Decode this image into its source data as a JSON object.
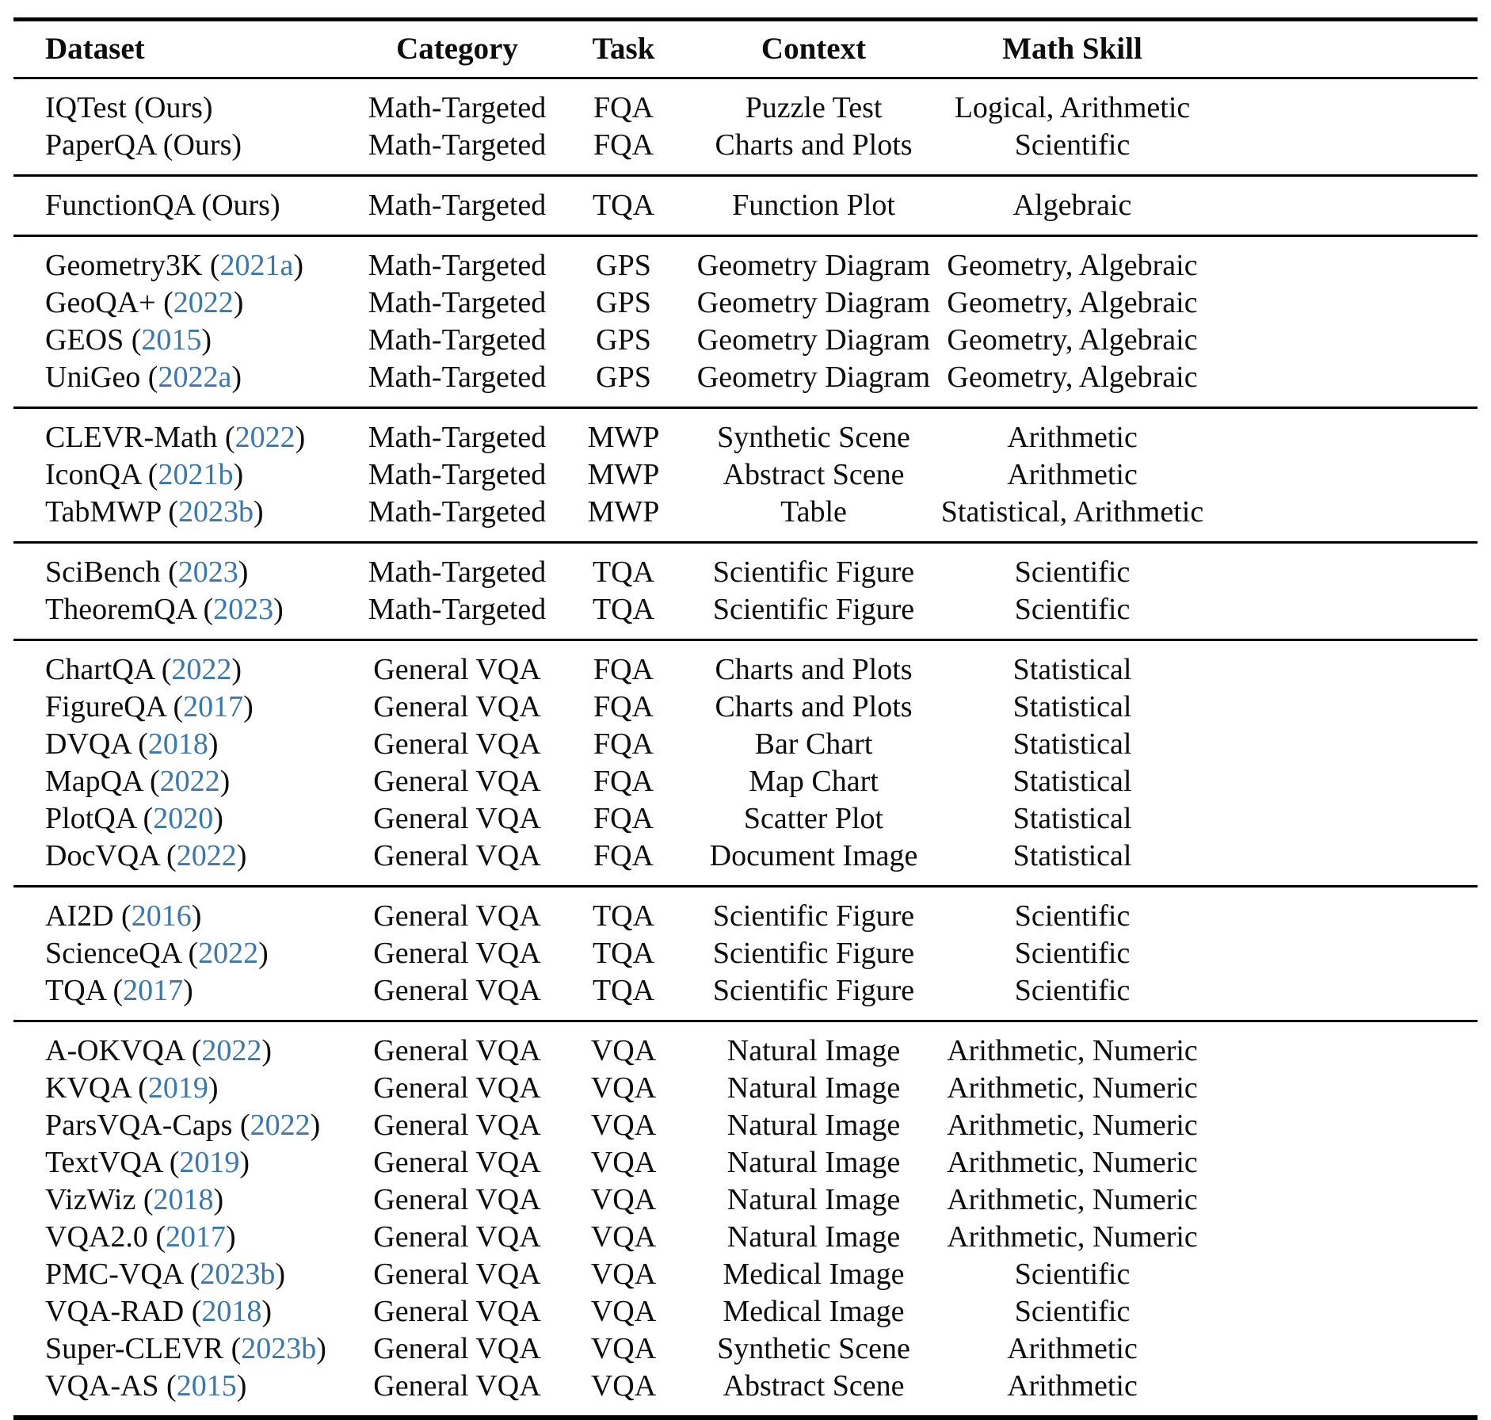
{
  "table": {
    "link_color": "#3878ae",
    "columns": [
      {
        "key": "dataset",
        "label": "Dataset"
      },
      {
        "key": "category",
        "label": "Category"
      },
      {
        "key": "task",
        "label": "Task"
      },
      {
        "key": "context",
        "label": "Context"
      },
      {
        "key": "skill",
        "label": "Math Skill"
      }
    ],
    "groups": [
      {
        "rows": [
          {
            "name": "IQTest",
            "ref": "Ours",
            "ref_link": false,
            "category": "Math-Targeted",
            "task": "FQA",
            "context": "Puzzle Test",
            "skill": "Logical, Arithmetic"
          },
          {
            "name": "PaperQA",
            "ref": "Ours",
            "ref_link": false,
            "category": "Math-Targeted",
            "task": "FQA",
            "context": "Charts and Plots",
            "skill": "Scientific"
          }
        ]
      },
      {
        "rows": [
          {
            "name": "FunctionQA",
            "ref": "Ours",
            "ref_link": false,
            "category": "Math-Targeted",
            "task": "TQA",
            "context": "Function Plot",
            "skill": "Algebraic"
          }
        ]
      },
      {
        "rows": [
          {
            "name": "Geometry3K",
            "ref": "2021a",
            "ref_link": true,
            "category": "Math-Targeted",
            "task": "GPS",
            "context": "Geometry Diagram",
            "skill": "Geometry, Algebraic"
          },
          {
            "name": "GeoQA+",
            "ref": "2022",
            "ref_link": true,
            "category": "Math-Targeted",
            "task": "GPS",
            "context": "Geometry Diagram",
            "skill": "Geometry, Algebraic"
          },
          {
            "name": "GEOS",
            "ref": "2015",
            "ref_link": true,
            "category": "Math-Targeted",
            "task": "GPS",
            "context": "Geometry Diagram",
            "skill": "Geometry, Algebraic"
          },
          {
            "name": "UniGeo",
            "ref": "2022a",
            "ref_link": true,
            "category": "Math-Targeted",
            "task": "GPS",
            "context": "Geometry Diagram",
            "skill": "Geometry, Algebraic"
          }
        ]
      },
      {
        "rows": [
          {
            "name": "CLEVR-Math",
            "ref": "2022",
            "ref_link": true,
            "category": "Math-Targeted",
            "task": "MWP",
            "context": "Synthetic Scene",
            "skill": "Arithmetic"
          },
          {
            "name": "IconQA",
            "ref": "2021b",
            "ref_link": true,
            "category": "Math-Targeted",
            "task": "MWP",
            "context": "Abstract Scene",
            "skill": "Arithmetic"
          },
          {
            "name": "TabMWP",
            "ref": "2023b",
            "ref_link": true,
            "category": "Math-Targeted",
            "task": "MWP",
            "context": "Table",
            "skill": "Statistical, Arithmetic"
          }
        ]
      },
      {
        "rows": [
          {
            "name": "SciBench",
            "ref": "2023",
            "ref_link": true,
            "category": "Math-Targeted",
            "task": "TQA",
            "context": "Scientific Figure",
            "skill": "Scientific"
          },
          {
            "name": "TheoremQA",
            "ref": "2023",
            "ref_link": true,
            "category": "Math-Targeted",
            "task": "TQA",
            "context": "Scientific Figure",
            "skill": "Scientific"
          }
        ]
      },
      {
        "rows": [
          {
            "name": "ChartQA",
            "ref": "2022",
            "ref_link": true,
            "category": "General VQA",
            "task": "FQA",
            "context": "Charts and Plots",
            "skill": "Statistical"
          },
          {
            "name": "FigureQA",
            "ref": "2017",
            "ref_link": true,
            "category": "General VQA",
            "task": "FQA",
            "context": "Charts and Plots",
            "skill": "Statistical"
          },
          {
            "name": "DVQA",
            "ref": "2018",
            "ref_link": true,
            "category": "General VQA",
            "task": "FQA",
            "context": "Bar Chart",
            "skill": "Statistical"
          },
          {
            "name": "MapQA",
            "ref": "2022",
            "ref_link": true,
            "category": "General VQA",
            "task": "FQA",
            "context": "Map Chart",
            "skill": "Statistical"
          },
          {
            "name": "PlotQA",
            "ref": "2020",
            "ref_link": true,
            "category": "General VQA",
            "task": "FQA",
            "context": "Scatter Plot",
            "skill": "Statistical"
          },
          {
            "name": "DocVQA",
            "ref": "2022",
            "ref_link": true,
            "category": "General VQA",
            "task": "FQA",
            "context": "Document Image",
            "skill": "Statistical"
          }
        ]
      },
      {
        "rows": [
          {
            "name": "AI2D",
            "ref": "2016",
            "ref_link": true,
            "category": "General VQA",
            "task": "TQA",
            "context": "Scientific Figure",
            "skill": "Scientific"
          },
          {
            "name": "ScienceQA",
            "ref": "2022",
            "ref_link": true,
            "category": "General VQA",
            "task": "TQA",
            "context": "Scientific Figure",
            "skill": "Scientific"
          },
          {
            "name": "TQA",
            "ref": "2017",
            "ref_link": true,
            "category": "General VQA",
            "task": "TQA",
            "context": "Scientific Figure",
            "skill": "Scientific"
          }
        ]
      },
      {
        "rows": [
          {
            "name": "A-OKVQA",
            "ref": "2022",
            "ref_link": true,
            "category": "General VQA",
            "task": "VQA",
            "context": "Natural Image",
            "skill": "Arithmetic, Numeric"
          },
          {
            "name": "KVQA",
            "ref": "2019",
            "ref_link": true,
            "category": "General VQA",
            "task": "VQA",
            "context": "Natural Image",
            "skill": "Arithmetic, Numeric"
          },
          {
            "name": "ParsVQA-Caps",
            "ref": "2022",
            "ref_link": true,
            "category": "General VQA",
            "task": "VQA",
            "context": "Natural Image",
            "skill": "Arithmetic, Numeric"
          },
          {
            "name": "TextVQA",
            "ref": "2019",
            "ref_link": true,
            "category": "General VQA",
            "task": "VQA",
            "context": "Natural Image",
            "skill": "Arithmetic, Numeric"
          },
          {
            "name": "VizWiz",
            "ref": "2018",
            "ref_link": true,
            "category": "General VQA",
            "task": "VQA",
            "context": "Natural Image",
            "skill": "Arithmetic, Numeric"
          },
          {
            "name": "VQA2.0",
            "ref": "2017",
            "ref_link": true,
            "category": "General VQA",
            "task": "VQA",
            "context": "Natural Image",
            "skill": "Arithmetic, Numeric"
          },
          {
            "name": "PMC-VQA",
            "ref": "2023b",
            "ref_link": true,
            "category": "General VQA",
            "task": "VQA",
            "context": "Medical Image",
            "skill": "Scientific"
          },
          {
            "name": "VQA-RAD",
            "ref": "2018",
            "ref_link": true,
            "category": "General VQA",
            "task": "VQA",
            "context": "Medical Image",
            "skill": "Scientific"
          },
          {
            "name": "Super-CLEVR",
            "ref": "2023b",
            "ref_link": true,
            "category": "General VQA",
            "task": "VQA",
            "context": "Synthetic Scene",
            "skill": "Arithmetic"
          },
          {
            "name": "VQA-AS",
            "ref": "2015",
            "ref_link": true,
            "category": "General VQA",
            "task": "VQA",
            "context": "Abstract Scene",
            "skill": "Arithmetic"
          }
        ]
      }
    ]
  }
}
